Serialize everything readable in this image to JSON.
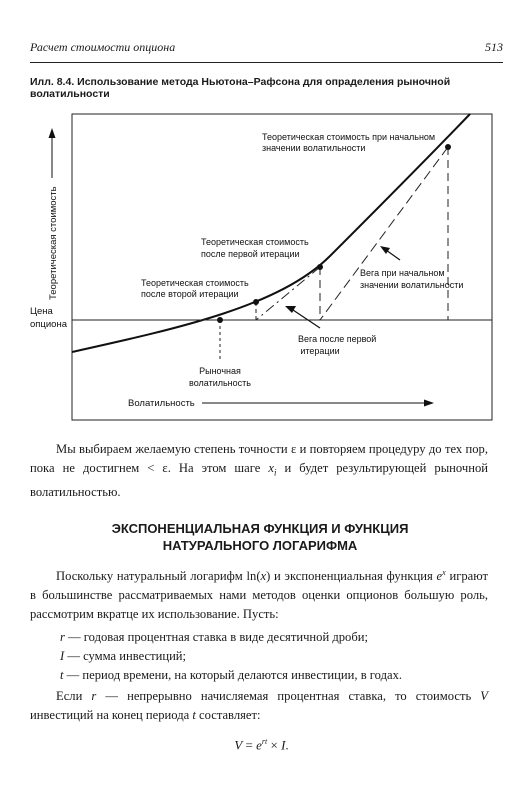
{
  "header": {
    "running_title": "Расчет стоимости опциона",
    "page_number": "513"
  },
  "figure": {
    "caption_label": "Илл. 8.4.",
    "caption_text": "Использование метода Ньютона–Рафсона для опраделения рыночной волатильности",
    "y_axis_label": "Теоретическая стоимость",
    "x_axis_label": "Волатильность",
    "price_label_line1": "Цена",
    "price_label_line2": "опциона",
    "market_vol_line1": "Рыночная",
    "market_vol_line2": "волатильность",
    "annotations": {
      "initial_value_1": "Теоретическая стоимость при начальном",
      "initial_value_2": "значении волатильности",
      "first_iter_1": "Теоретическая стоимость",
      "first_iter_2": "после первой итерации",
      "second_iter_1": "Теоретическая стоимость",
      "second_iter_2": "после второй итерации",
      "vega_initial_1": "Вега при начальном",
      "vega_initial_2": "значении волатильности",
      "vega_first_1": "Вега после первой",
      "vega_first_2": "итерации"
    }
  },
  "body": {
    "para1_a": "Мы выбираем желаемую степень точности ε и повторяем процедуру до тех пор, пока не достигнем < ε. На этом шаге ",
    "para1_var": "x",
    "para1_sub": "i",
    "para1_b": " и будет результирующей рыночной волатильностью.",
    "section_line1": "ЭКСПОНЕНЦИАЛЬНАЯ ФУНКЦИЯ И ФУНКЦИЯ",
    "section_line2": "НАТУРАЛЬНОГО ЛОГАРИФМА",
    "para2_a": "Поскольку натуральный логарифм ln(",
    "para2_x": "x",
    "para2_b": ") и экспоненциальная функция ",
    "para2_e": "e",
    "para2_sup": "x",
    "para2_c": " играют в большинстве рассматриваемых нами методов оценки опционов большую роль, рассмотрим вкратце их использование. Пусть:",
    "list": [
      {
        "var": "r",
        "text": " — годовая процентная ставка в виде десятичной дроби;"
      },
      {
        "var": "I",
        "text": " — сумма инвестиций;"
      },
      {
        "var": "t",
        "text": " — период времени, на который делаются инвестиции, в годах."
      }
    ],
    "para3_a": "Если ",
    "para3_r": "r",
    "para3_b": " — непрерывно начисляемая процентная ставка, то стоимость ",
    "para3_v": "V",
    "para3_c": " инвестиций на конец периода ",
    "para3_t": "t",
    "para3_d": " составляет:",
    "formula_lhs": "V",
    "formula_eq": " = ",
    "formula_e": "e",
    "formula_sup": "rt",
    "formula_rest": " × ",
    "formula_i": "I",
    "formula_end": "."
  }
}
